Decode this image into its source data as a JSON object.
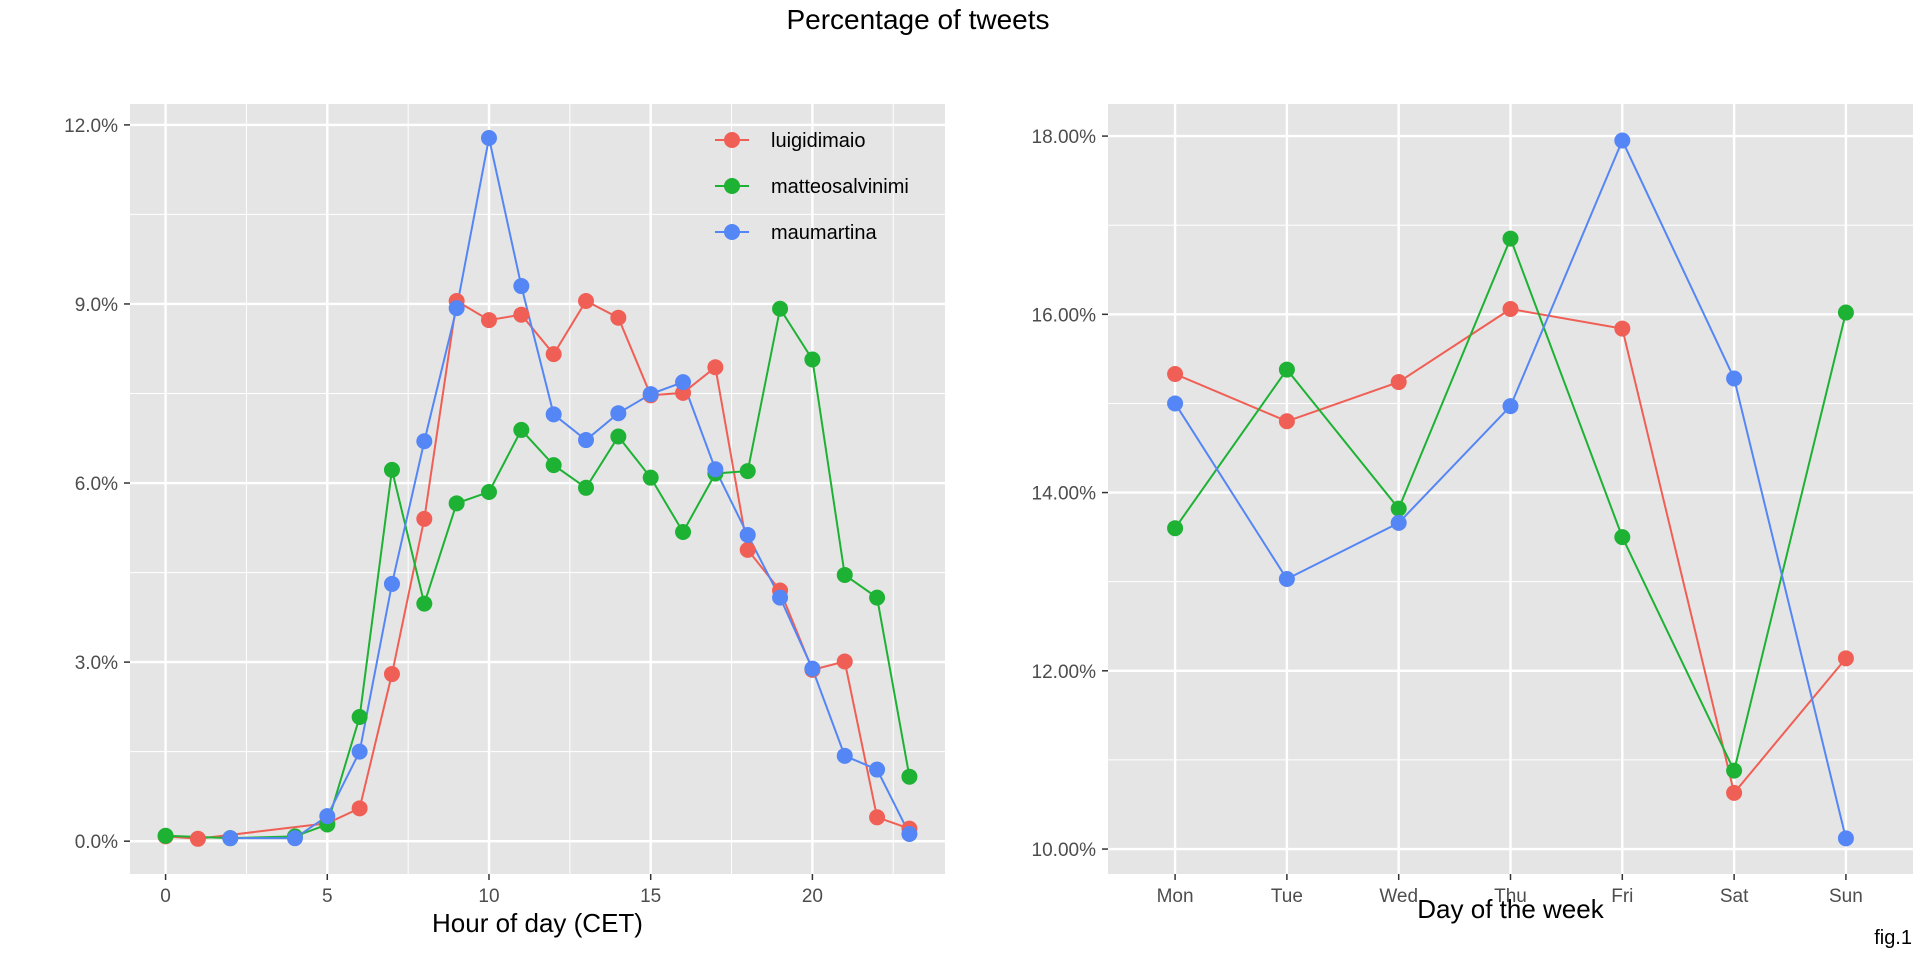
{
  "title": "Percentage of tweets",
  "footnote": "fig.1",
  "colors": {
    "panel_bg": "#E5E5E5",
    "grid": "#FFFFFF",
    "luigidimaio": "#F05F55",
    "matteosalvinimi": "#1DB233",
    "maumartina": "#5586F5"
  },
  "chart_data": [
    {
      "type": "line",
      "xlabel": "Hour of day (CET)",
      "ylabel": "",
      "xlim": [
        -1.1,
        24.1
      ],
      "ylim": [
        -0.0055,
        0.1235
      ],
      "x_ticks": [
        0,
        5,
        10,
        15,
        20
      ],
      "x_tick_labels": [
        "0",
        "5",
        "10",
        "15",
        "20"
      ],
      "y_ticks": [
        0,
        0.03,
        0.06,
        0.09,
        0.12
      ],
      "y_tick_labels": [
        "0.0%",
        "3.0%",
        "6.0%",
        "9.0%",
        "12.0%"
      ],
      "legend": "top-right",
      "series": [
        {
          "name": "luigidimaio",
          "x": [
            0,
            1,
            5,
            6,
            7,
            8,
            9,
            10,
            11,
            12,
            13,
            14,
            15,
            16,
            17,
            18,
            19,
            20,
            21,
            22,
            23
          ],
          "y": [
            0.0008,
            0.0004,
            0.003,
            0.0055,
            0.028,
            0.054,
            0.0905,
            0.0873,
            0.0882,
            0.0816,
            0.0905,
            0.0877,
            0.0747,
            0.0751,
            0.0794,
            0.0488,
            0.042,
            0.0287,
            0.0301,
            0.004,
            0.0021
          ]
        },
        {
          "name": "matteosalvinimi",
          "x": [
            0,
            2,
            4,
            5,
            6,
            7,
            8,
            9,
            10,
            11,
            12,
            13,
            14,
            15,
            16,
            17,
            18,
            19,
            20,
            21,
            22,
            23
          ],
          "y": [
            0.0009,
            0.0005,
            0.0008,
            0.0028,
            0.0208,
            0.0622,
            0.0398,
            0.0566,
            0.0585,
            0.0689,
            0.063,
            0.0592,
            0.0678,
            0.0609,
            0.0518,
            0.0616,
            0.062,
            0.0892,
            0.0807,
            0.0446,
            0.0408,
            0.0108
          ]
        },
        {
          "name": "maumartina",
          "x": [
            2,
            4,
            5,
            6,
            7,
            8,
            9,
            10,
            11,
            12,
            13,
            14,
            15,
            16,
            17,
            18,
            19,
            20,
            21,
            22,
            23
          ],
          "y": [
            0.0005,
            0.0005,
            0.0042,
            0.015,
            0.0431,
            0.067,
            0.0893,
            0.1178,
            0.093,
            0.0715,
            0.0672,
            0.0717,
            0.0749,
            0.0769,
            0.0623,
            0.0513,
            0.0408,
            0.0289,
            0.0143,
            0.012,
            0.0012
          ]
        }
      ]
    },
    {
      "type": "line",
      "xlabel": "Day of the week",
      "ylabel": "",
      "categories": [
        "Mon",
        "Tue",
        "Wed",
        "Thu",
        "Fri",
        "Sat",
        "Sun"
      ],
      "ylim": [
        0.0972,
        0.1836
      ],
      "y_ticks": [
        0.1,
        0.12,
        0.14,
        0.16,
        0.18
      ],
      "y_tick_labels": [
        "10.00%",
        "12.00%",
        "14.00%",
        "16.00%",
        "18.00%"
      ],
      "series": [
        {
          "name": "luigidimaio",
          "values": [
            0.1533,
            0.148,
            0.1524,
            0.1606,
            0.1584,
            0.1063,
            0.1214
          ]
        },
        {
          "name": "matteosalvinimi",
          "values": [
            0.136,
            0.1538,
            0.1382,
            0.1685,
            0.135,
            0.1088,
            0.1602
          ]
        },
        {
          "name": "maumartina",
          "values": [
            0.15,
            0.1303,
            0.1366,
            0.1497,
            0.1795,
            0.1528,
            0.1012
          ]
        }
      ]
    }
  ]
}
